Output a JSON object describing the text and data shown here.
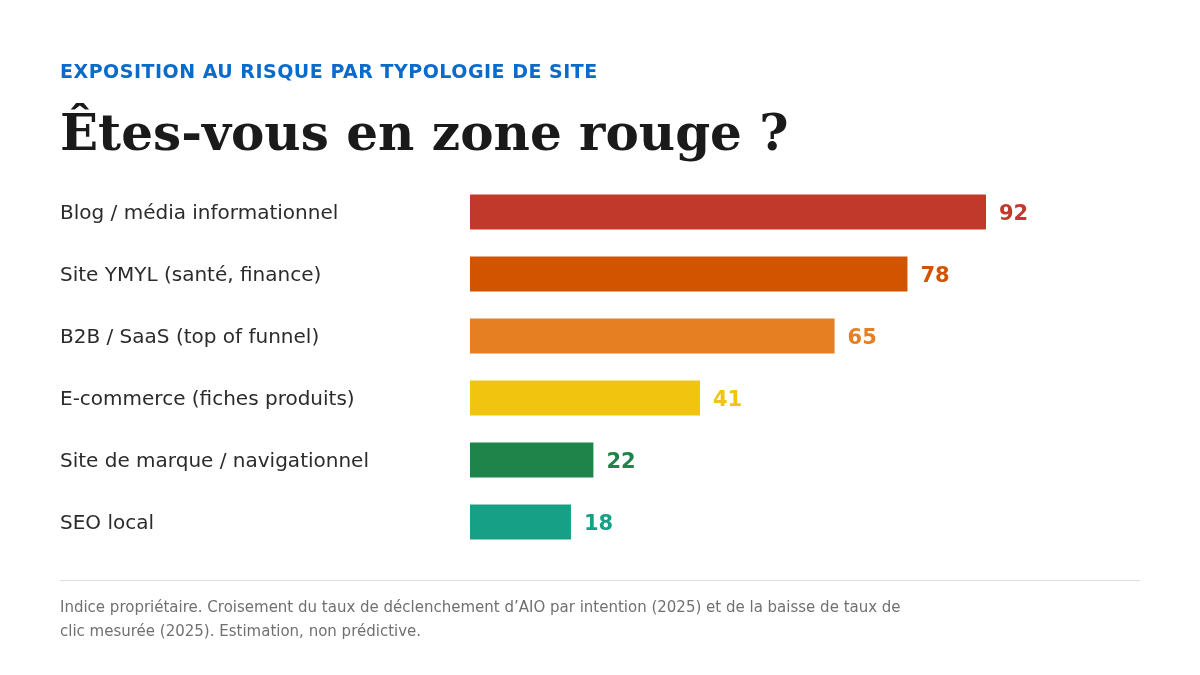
{
  "chart_data": {
    "type": "bar",
    "orientation": "horizontal",
    "subtitle": "EXPOSITION AU RISQUE PAR TYPOLOGIE DE SITE",
    "title": "Êtes-vous en zone rouge ?",
    "categories": [
      "Blog / média informationnel",
      "Site YMYL (santé, finance)",
      "B2B / SaaS (top of funnel)",
      "E-commerce (fiches produits)",
      "Site de marque / navigationnel",
      "SEO local"
    ],
    "values": [
      92,
      78,
      65,
      41,
      22,
      18
    ],
    "colors": [
      "#c0392b",
      "#d35400",
      "#e67e22",
      "#f1c40f",
      "#1e8449",
      "#16a085"
    ],
    "data_labels": true,
    "annotations": [
      "Indice propriétaire. Croisement du taux de déclenchement d’AIO par intention (2025) et de la baisse de taux de clic mesurée (2025). Estimation, non prédictive."
    ]
  }
}
